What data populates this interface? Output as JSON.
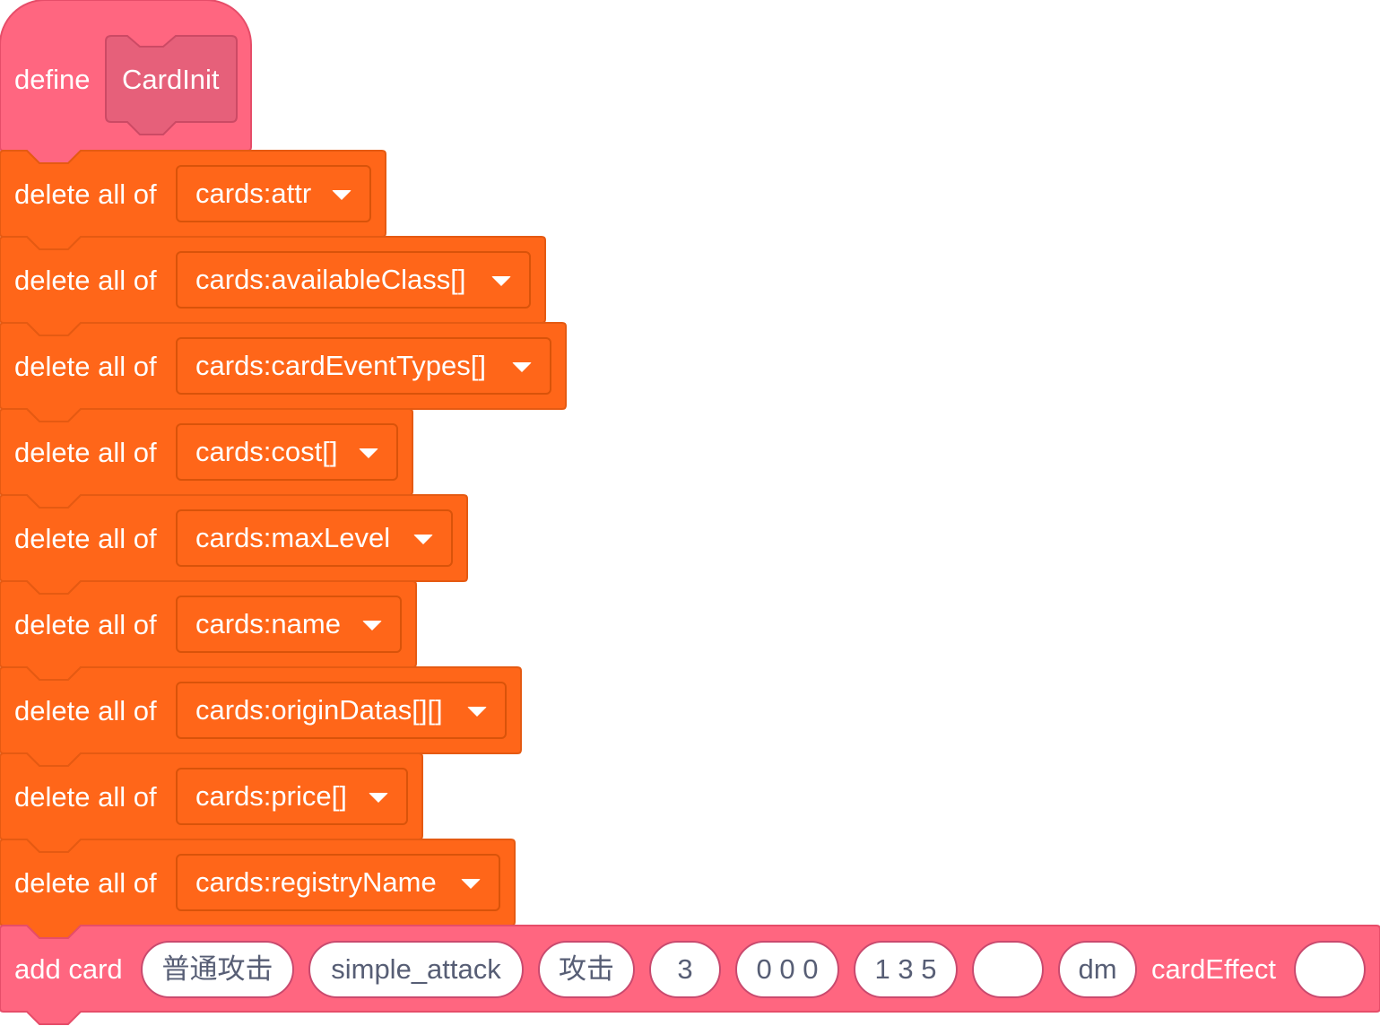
{
  "define_block": {
    "keyword": "define",
    "name": "CardInit"
  },
  "delete_blocks": [
    {
      "label": "delete all of",
      "list": "cards:attr"
    },
    {
      "label": "delete all of",
      "list": "cards:availableClass[]"
    },
    {
      "label": "delete all of",
      "list": "cards:cardEventTypes[]"
    },
    {
      "label": "delete all of",
      "list": "cards:cost[]"
    },
    {
      "label": "delete all of",
      "list": "cards:maxLevel"
    },
    {
      "label": "delete all of",
      "list": "cards:name"
    },
    {
      "label": "delete all of",
      "list": "cards:originDatas[][]"
    },
    {
      "label": "delete all of",
      "list": "cards:price[]"
    },
    {
      "label": "delete all of",
      "list": "cards:registryName"
    }
  ],
  "add_card_block": {
    "label": "add card",
    "args": [
      "普通攻击",
      "simple_attack",
      "攻击",
      "3",
      "0 0 0",
      "1 3 5",
      "",
      "dm"
    ],
    "effect_label": "cardEffect",
    "effect_value": ""
  },
  "colors": {
    "custom_block": "#ff6680",
    "custom_block_border": "#e64d69",
    "list_block": "#ff6619",
    "list_block_border": "#e55a12",
    "text": "#ffffff",
    "input_text": "#575e75"
  }
}
